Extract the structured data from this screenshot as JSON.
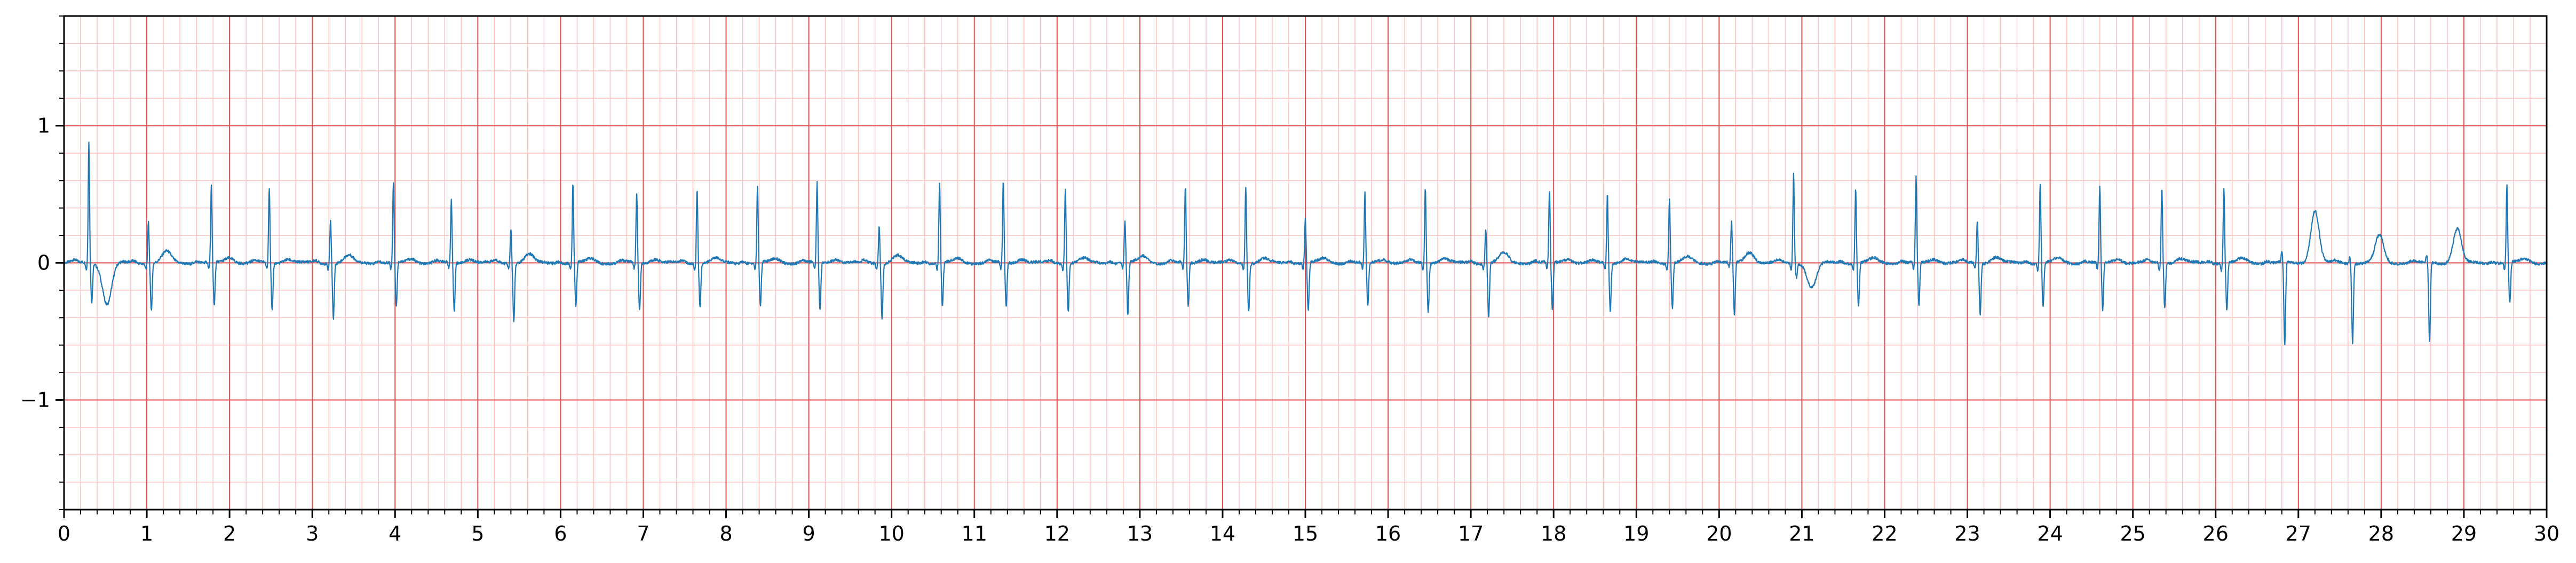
{
  "chart_data": {
    "type": "line",
    "title": "",
    "xlabel": "",
    "ylabel": "",
    "xlim": [
      0,
      30
    ],
    "ylim": [
      -1.8,
      1.8
    ],
    "x_ticks": [
      0,
      1,
      2,
      3,
      4,
      5,
      6,
      7,
      8,
      9,
      10,
      11,
      12,
      13,
      14,
      15,
      16,
      17,
      18,
      19,
      20,
      21,
      22,
      23,
      24,
      25,
      26,
      27,
      28,
      29,
      30
    ],
    "x_tick_labels": [
      "0",
      "1",
      "2",
      "3",
      "4",
      "5",
      "6",
      "7",
      "8",
      "9",
      "10",
      "11",
      "12",
      "13",
      "14",
      "15",
      "16",
      "17",
      "18",
      "19",
      "20",
      "21",
      "22",
      "23",
      "24",
      "25",
      "26",
      "27",
      "28",
      "29",
      "30"
    ],
    "y_ticks": [
      -1,
      0,
      1
    ],
    "y_tick_labels": [
      "−1",
      "0",
      "1"
    ],
    "grid": {
      "major": {
        "x_step": 1,
        "y_step": 1,
        "color": "#e05050"
      },
      "minor": {
        "x_step": 0.2,
        "y_step": 0.2,
        "color": "#ffc0c0"
      }
    },
    "background": "#ffffff",
    "series": [
      {
        "color": "#1f77b4",
        "beats": [
          {
            "t": 0.3,
            "r": 0.88,
            "s": -0.28,
            "q": -0.05,
            "tw": -0.3
          },
          {
            "t": 1.02,
            "r": 0.3,
            "s": -0.35,
            "q": -0.04,
            "tw": 0.08
          },
          {
            "t": 1.78,
            "r": 0.55,
            "s": -0.32,
            "q": -0.05,
            "tw": 0.04
          },
          {
            "t": 2.48,
            "r": 0.55,
            "s": -0.35,
            "q": -0.05,
            "tw": 0.03
          },
          {
            "t": 3.22,
            "r": 0.32,
            "s": -0.4,
            "q": -0.04,
            "tw": 0.05
          },
          {
            "t": 3.98,
            "r": 0.58,
            "s": -0.32,
            "q": -0.05,
            "tw": 0.03
          },
          {
            "t": 4.68,
            "r": 0.45,
            "s": -0.35,
            "q": -0.04,
            "tw": 0.03
          },
          {
            "t": 5.4,
            "r": 0.25,
            "s": -0.42,
            "q": -0.03,
            "tw": 0.06
          },
          {
            "t": 6.15,
            "r": 0.58,
            "s": -0.32,
            "q": -0.05,
            "tw": 0.03
          },
          {
            "t": 6.92,
            "r": 0.5,
            "s": -0.35,
            "q": -0.05,
            "tw": 0.03
          },
          {
            "t": 7.65,
            "r": 0.55,
            "s": -0.32,
            "q": -0.05,
            "tw": 0.03
          },
          {
            "t": 8.38,
            "r": 0.55,
            "s": -0.32,
            "q": -0.05,
            "tw": 0.03
          },
          {
            "t": 9.1,
            "r": 0.58,
            "s": -0.35,
            "q": -0.05,
            "tw": 0.03
          },
          {
            "t": 9.85,
            "r": 0.28,
            "s": -0.4,
            "q": -0.04,
            "tw": 0.05
          },
          {
            "t": 10.58,
            "r": 0.58,
            "s": -0.32,
            "q": -0.05,
            "tw": 0.03
          },
          {
            "t": 11.35,
            "r": 0.6,
            "s": -0.32,
            "q": -0.05,
            "tw": 0.03
          },
          {
            "t": 12.1,
            "r": 0.55,
            "s": -0.35,
            "q": -0.05,
            "tw": 0.03
          },
          {
            "t": 12.82,
            "r": 0.3,
            "s": -0.38,
            "q": -0.04,
            "tw": 0.05
          },
          {
            "t": 13.55,
            "r": 0.55,
            "s": -0.32,
            "q": -0.05,
            "tw": 0.03
          },
          {
            "t": 14.28,
            "r": 0.55,
            "s": -0.35,
            "q": -0.05,
            "tw": 0.03
          },
          {
            "t": 15.0,
            "r": 0.32,
            "s": -0.35,
            "q": -0.04,
            "tw": 0.03
          },
          {
            "t": 15.72,
            "r": 0.5,
            "s": -0.32,
            "q": -0.05,
            "tw": 0.03
          },
          {
            "t": 16.45,
            "r": 0.55,
            "s": -0.35,
            "q": -0.05,
            "tw": 0.03
          },
          {
            "t": 17.18,
            "r": 0.25,
            "s": -0.4,
            "q": -0.04,
            "tw": 0.07
          },
          {
            "t": 17.95,
            "r": 0.52,
            "s": -0.35,
            "q": -0.05,
            "tw": 0.03
          },
          {
            "t": 18.65,
            "r": 0.5,
            "s": -0.35,
            "q": -0.05,
            "tw": 0.03
          },
          {
            "t": 19.4,
            "r": 0.48,
            "s": -0.33,
            "q": -0.05,
            "tw": 0.04
          },
          {
            "t": 20.15,
            "r": 0.3,
            "s": -0.38,
            "q": -0.04,
            "tw": 0.08
          },
          {
            "t": 20.9,
            "r": 0.65,
            "s": -0.1,
            "q": -0.05,
            "tw": -0.18
          },
          {
            "t": 21.65,
            "r": 0.55,
            "s": -0.32,
            "q": -0.05,
            "tw": 0.03
          },
          {
            "t": 22.38,
            "r": 0.62,
            "s": -0.32,
            "q": -0.05,
            "tw": 0.03
          },
          {
            "t": 23.12,
            "r": 0.3,
            "s": -0.38,
            "q": -0.04,
            "tw": 0.04
          },
          {
            "t": 23.88,
            "r": 0.58,
            "s": -0.33,
            "q": -0.05,
            "tw": 0.03
          },
          {
            "t": 24.6,
            "r": 0.55,
            "s": -0.35,
            "q": -0.05,
            "tw": 0.03
          },
          {
            "t": 25.35,
            "r": 0.55,
            "s": -0.32,
            "q": -0.05,
            "tw": 0.03
          },
          {
            "t": 26.1,
            "r": 0.55,
            "s": -0.35,
            "q": -0.05,
            "tw": 0.03
          },
          {
            "t": 26.8,
            "r": 0.08,
            "s": -0.6,
            "q": 0.0,
            "tw": 0.38,
            "twt": 27.2
          },
          {
            "t": 27.62,
            "r": 0.05,
            "s": -0.58,
            "q": 0.0,
            "tw": 0.2,
            "twt": 27.98
          },
          {
            "t": 28.55,
            "r": 0.05,
            "s": -0.58,
            "q": 0.0,
            "tw": 0.25,
            "twt": 28.92
          },
          {
            "t": 29.52,
            "r": 0.57,
            "s": -0.3,
            "q": -0.05,
            "tw": 0.03
          }
        ]
      }
    ]
  }
}
